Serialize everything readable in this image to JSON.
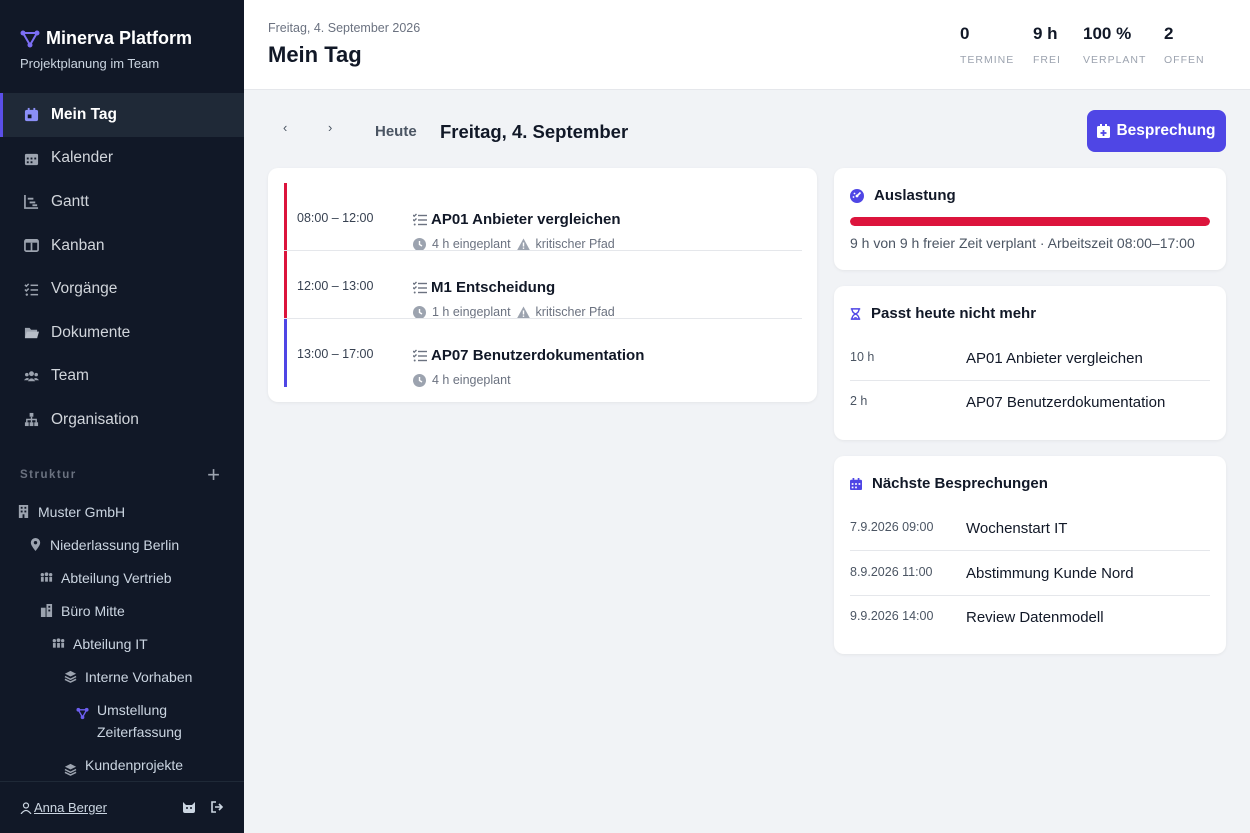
{
  "app": {
    "title": "Minerva Platform",
    "subtitle": "Projektplanung im Team"
  },
  "nav": [
    {
      "label": "Mein Tag",
      "icon": "calendar-today-icon",
      "active": true
    },
    {
      "label": "Kalender",
      "icon": "calendar-icon"
    },
    {
      "label": "Gantt",
      "icon": "gantt-icon"
    },
    {
      "label": "Kanban",
      "icon": "kanban-icon"
    },
    {
      "label": "Vorgänge",
      "icon": "tasks-icon"
    },
    {
      "label": "Dokumente",
      "icon": "folder-icon"
    },
    {
      "label": "Team",
      "icon": "team-icon"
    },
    {
      "label": "Organisation",
      "icon": "org-icon"
    }
  ],
  "structure": {
    "label": "Struktur",
    "add": "+",
    "items": [
      {
        "label": "Muster GmbH",
        "icon": "building-icon"
      },
      {
        "label": "Niederlassung Berlin",
        "icon": "location-pin-icon"
      },
      {
        "label": "Abteilung Vertrieb",
        "icon": "group-icon"
      },
      {
        "label": "Büro Mitte",
        "icon": "office-icon"
      },
      {
        "label": "Abteilung IT",
        "icon": "group-icon"
      },
      {
        "label": "Interne Vorhaben",
        "icon": "layers-icon"
      },
      {
        "label": "Umstellung Zeiterfassung",
        "icon": "project-icon"
      },
      {
        "label": "Kundenprojekte",
        "icon": "layers-icon"
      }
    ]
  },
  "user": {
    "name": "Anna Berger"
  },
  "header": {
    "date": "Freitag, 4. September 2026",
    "title": "Mein Tag",
    "stats": [
      {
        "value": "0",
        "label": "TERMINE"
      },
      {
        "value": "9 h",
        "label": "FREI"
      },
      {
        "value": "100 %",
        "label": "VERPLANT"
      },
      {
        "value": "2",
        "label": "OFFEN"
      }
    ]
  },
  "toolbar": {
    "prev": "‹",
    "next": "›",
    "today": "Heute",
    "title": "Freitag, 4. September",
    "action": "Besprechung"
  },
  "agenda": [
    {
      "time": "08:00 – 12:00",
      "title": "AP01 Anbieter vergleichen",
      "planned": "4 h eingeplant",
      "flag": "kritischer Pfad",
      "color": "#dc143c"
    },
    {
      "time": "12:00 – 13:00",
      "title": "M1 Entscheidung",
      "planned": "1 h eingeplant",
      "flag": "kritischer Pfad",
      "color": "#dc143c"
    },
    {
      "time": "13:00 – 17:00",
      "title": "AP07 Benutzerdokumentation",
      "planned": "4 h eingeplant",
      "flag": "",
      "color": "#4f46e5"
    }
  ],
  "load": {
    "title": "Auslastung",
    "percent": 100,
    "text": "9 h von 9 h freier Zeit verplant · Arbeitszeit 08:00–17:00",
    "color": "#dc143c"
  },
  "nofit": {
    "title": "Passt heute nicht mehr",
    "rows": [
      {
        "hours": "10 h",
        "task": "AP01 Anbieter vergleichen"
      },
      {
        "hours": "2 h",
        "task": "AP07 Benutzerdokumentation"
      }
    ]
  },
  "meetings": {
    "title": "Nächste Besprechungen",
    "rows": [
      {
        "when": "7.9.2026 09:00",
        "what": "Wochenstart IT"
      },
      {
        "when": "8.9.2026 11:00",
        "what": "Abstimmung Kunde Nord"
      },
      {
        "when": "9.9.2026 14:00",
        "what": "Review Datenmodell"
      }
    ]
  },
  "colors": {
    "accent": "#4f46e5",
    "critical": "#dc143c",
    "sidebar": "#111827"
  }
}
